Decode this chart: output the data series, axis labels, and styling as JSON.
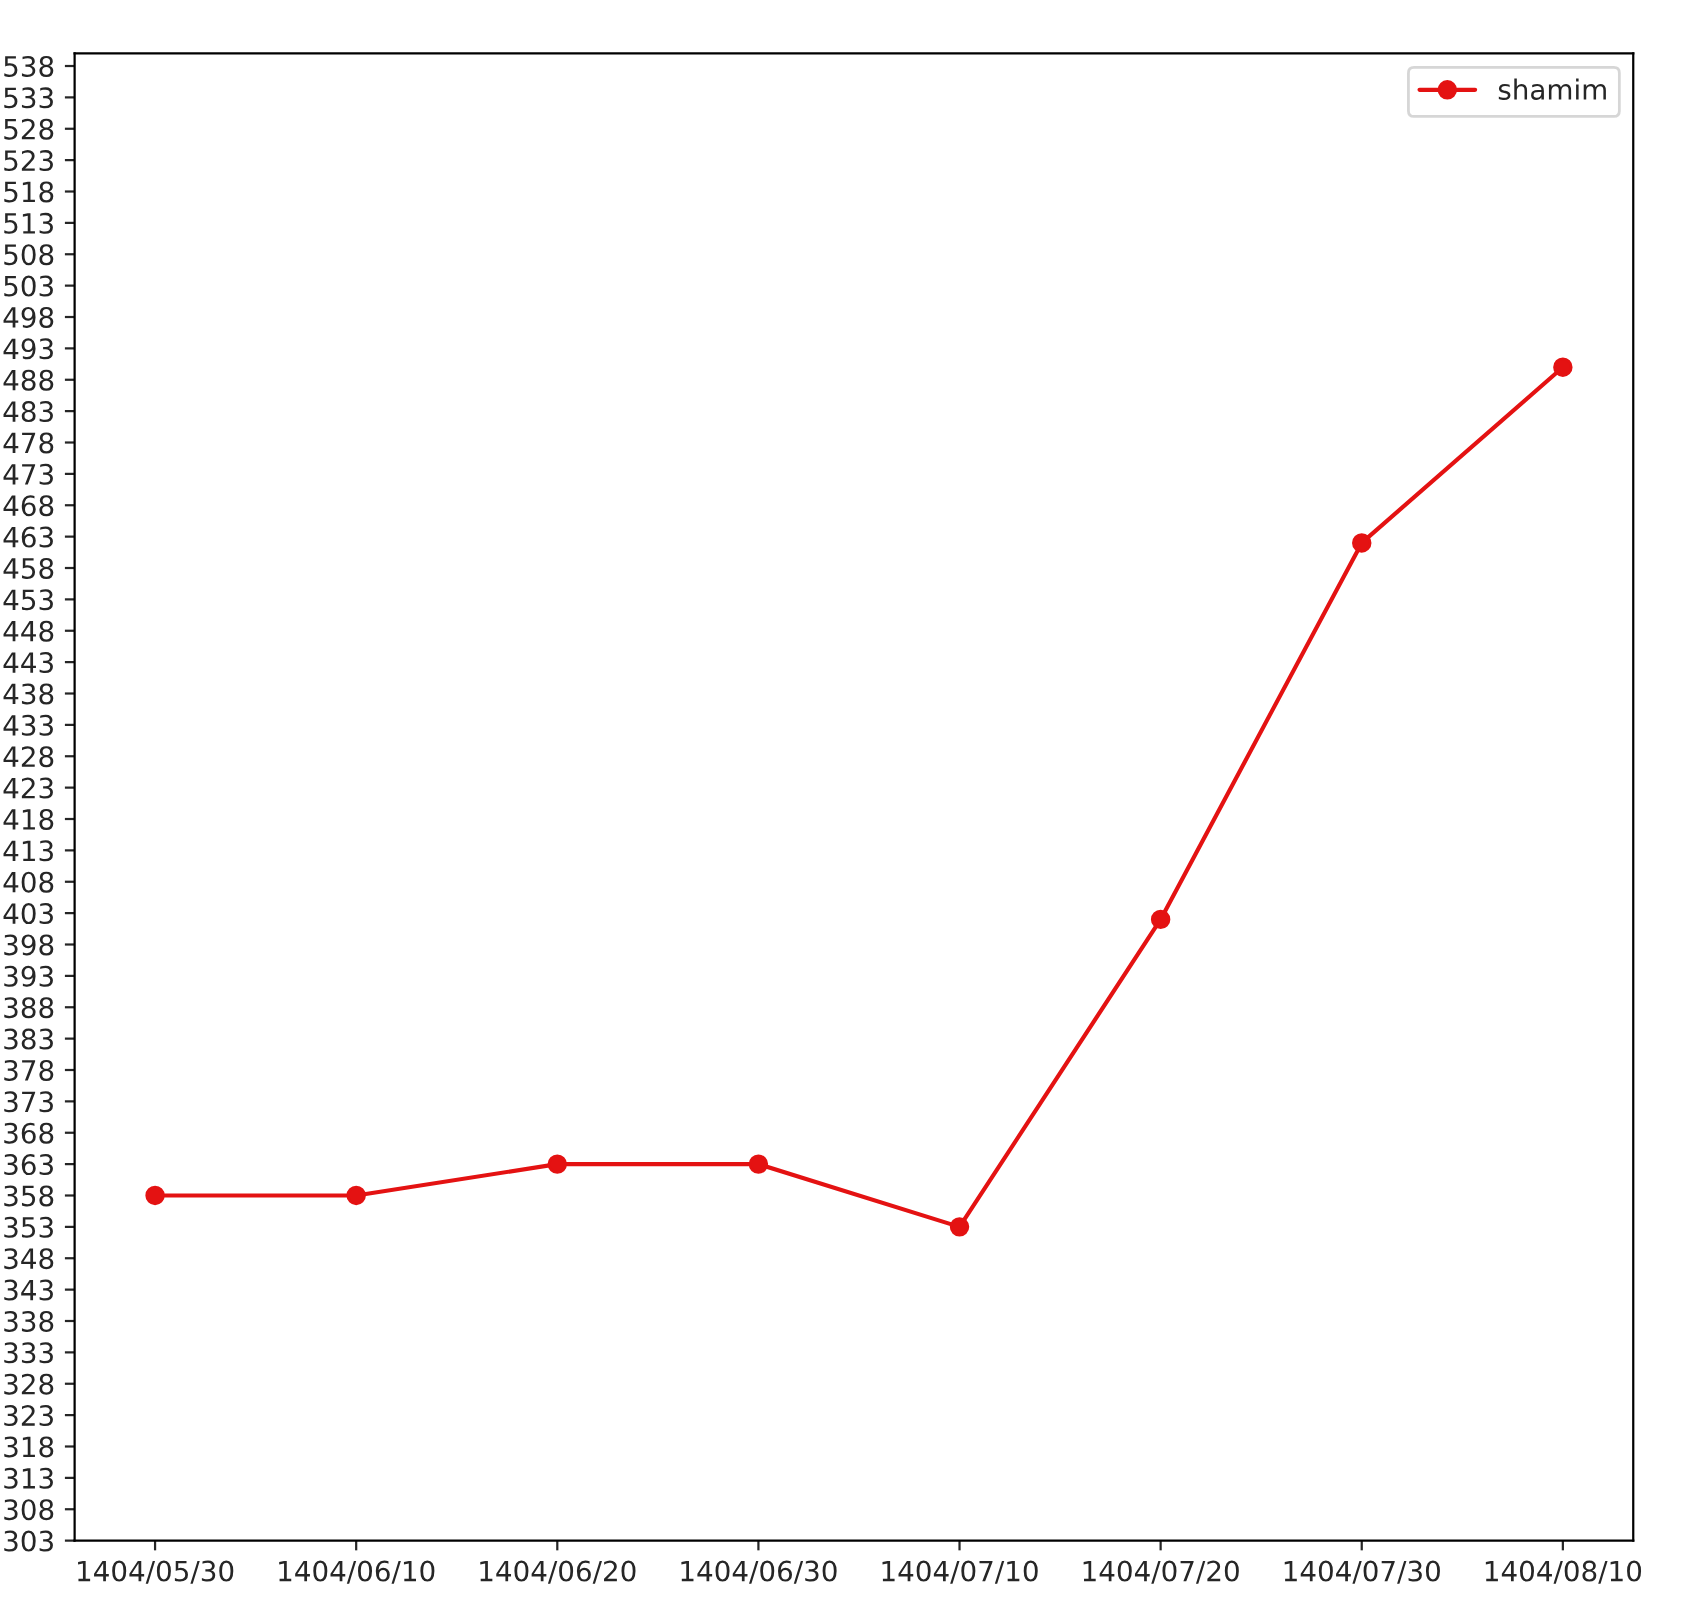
{
  "chart_data": {
    "type": "line",
    "categories": [
      "1404/05/30",
      "1404/06/10",
      "1404/06/20",
      "1404/06/30",
      "1404/07/10",
      "1404/07/20",
      "1404/07/30",
      "1404/08/10"
    ],
    "series": [
      {
        "name": "shamim",
        "color": "#e41212",
        "values": [
          358,
          358,
          363,
          363,
          353,
          402,
          462,
          490
        ]
      }
    ],
    "ylim": [
      303,
      540
    ],
    "yticks": [
      303,
      308,
      313,
      318,
      323,
      328,
      333,
      338,
      343,
      348,
      353,
      358,
      363,
      368,
      373,
      378,
      383,
      388,
      393,
      398,
      403,
      408,
      413,
      418,
      423,
      428,
      433,
      438,
      443,
      448,
      453,
      458,
      463,
      468,
      473,
      478,
      483,
      488,
      493,
      498,
      503,
      508,
      513,
      518,
      523,
      528,
      533,
      538
    ],
    "marker": "circle",
    "line_style": "solid",
    "legend": "top right",
    "grid": false
  }
}
